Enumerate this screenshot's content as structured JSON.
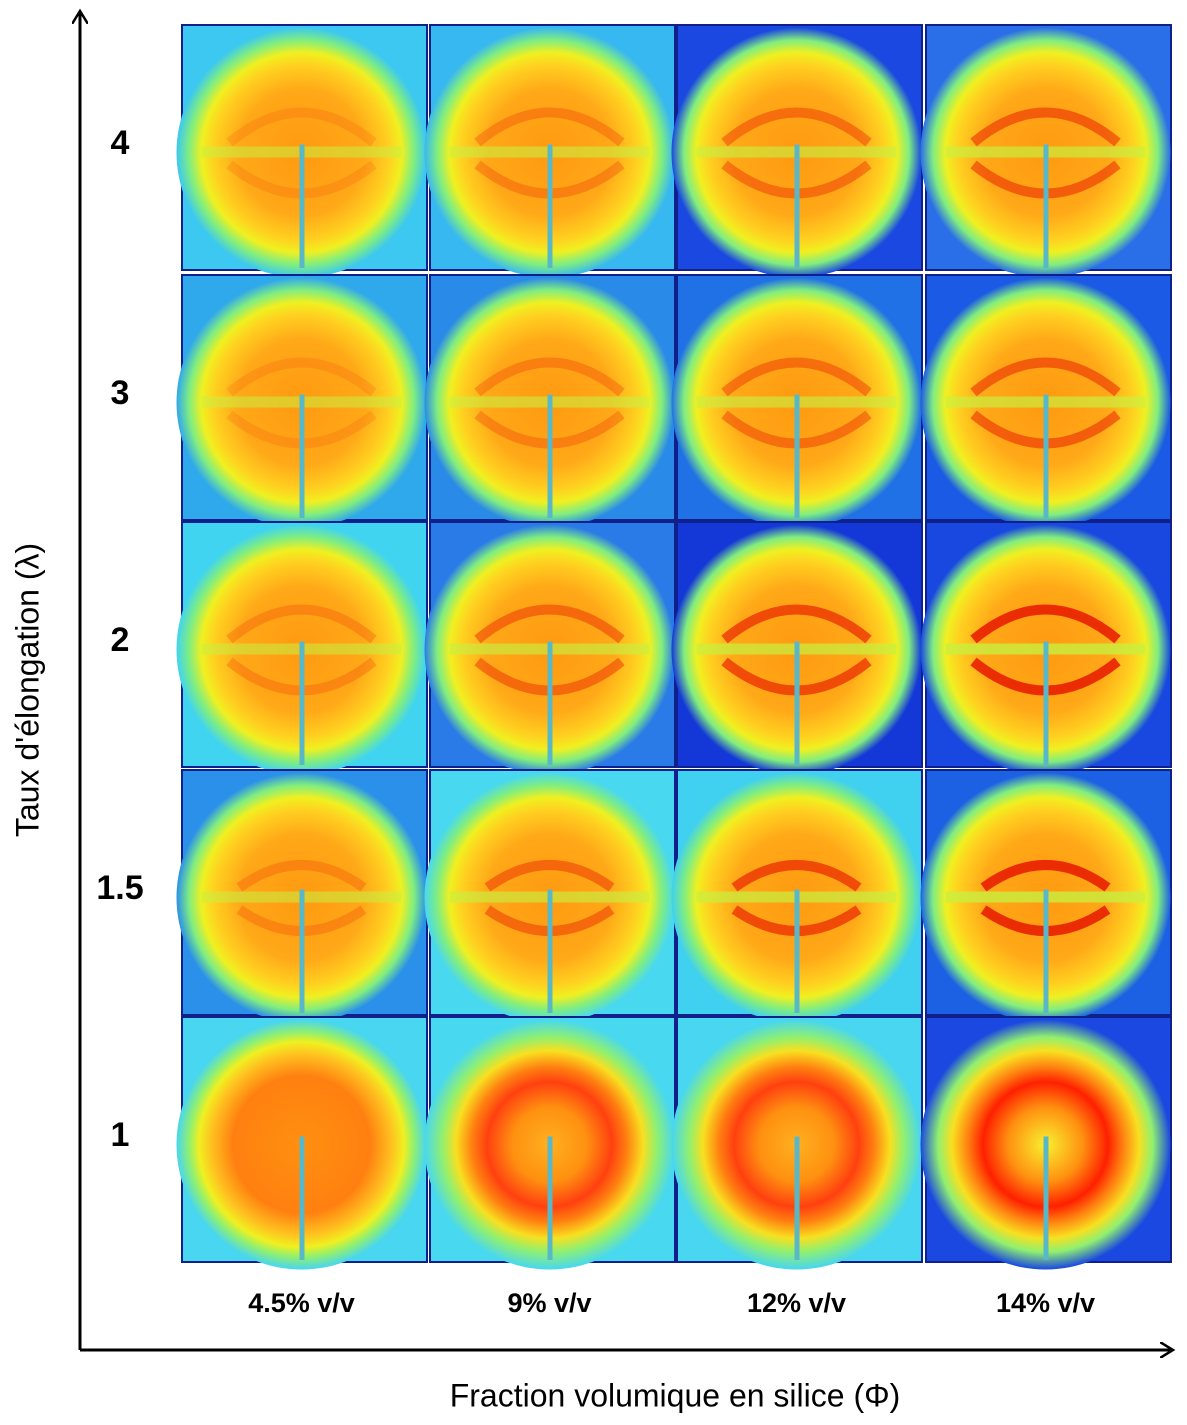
{
  "y_axis": {
    "label": "Taux d'élongation (λ)",
    "rows": [
      "4",
      "3",
      "2",
      "1.5",
      "1"
    ]
  },
  "x_axis": {
    "label": "Fraction volumique en silice (Φ)",
    "columns": [
      "4.5% v/v",
      "9% v/v",
      "12% v/v",
      "14% v/v"
    ]
  }
}
